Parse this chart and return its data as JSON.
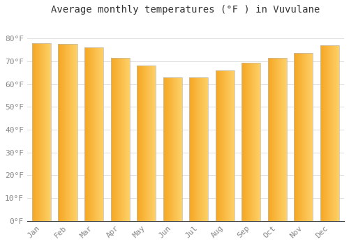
{
  "title": "Average monthly temperatures (°F ) in Vuvulane",
  "months": [
    "Jan",
    "Feb",
    "Mar",
    "Apr",
    "May",
    "Jun",
    "Jul",
    "Aug",
    "Sep",
    "Oct",
    "Nov",
    "Dec"
  ],
  "values": [
    78,
    77.5,
    76,
    71.5,
    68,
    63,
    63,
    66,
    69.5,
    71.5,
    73.5,
    77
  ],
  "bar_color_left": "#F5A623",
  "bar_color_right": "#FDD067",
  "bar_edge_color": "#BBBBBB",
  "background_color": "#FFFFFF",
  "grid_color": "#DDDDDD",
  "ylim": [
    0,
    88
  ],
  "yticks": [
    0,
    10,
    20,
    30,
    40,
    50,
    60,
    70,
    80
  ],
  "ytick_labels": [
    "0°F",
    "10°F",
    "20°F",
    "30°F",
    "40°F",
    "50°F",
    "60°F",
    "70°F",
    "80°F"
  ],
  "title_fontsize": 10,
  "tick_fontsize": 8,
  "title_color": "#333333",
  "tick_color": "#888888"
}
